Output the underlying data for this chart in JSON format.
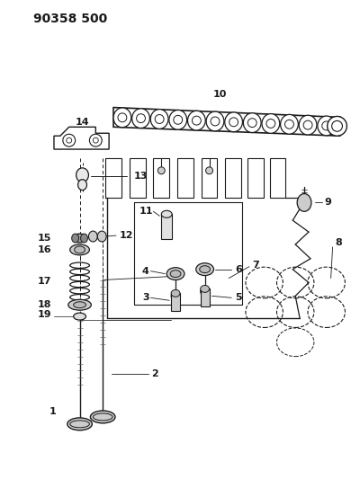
{
  "title": "90358 500",
  "bg_color": "#ffffff",
  "line_color": "#1a1a1a",
  "gray_color": "#888888",
  "title_fontsize": 10,
  "label_fontsize": 8,
  "fig_width": 4.0,
  "fig_height": 5.33,
  "dpi": 100
}
